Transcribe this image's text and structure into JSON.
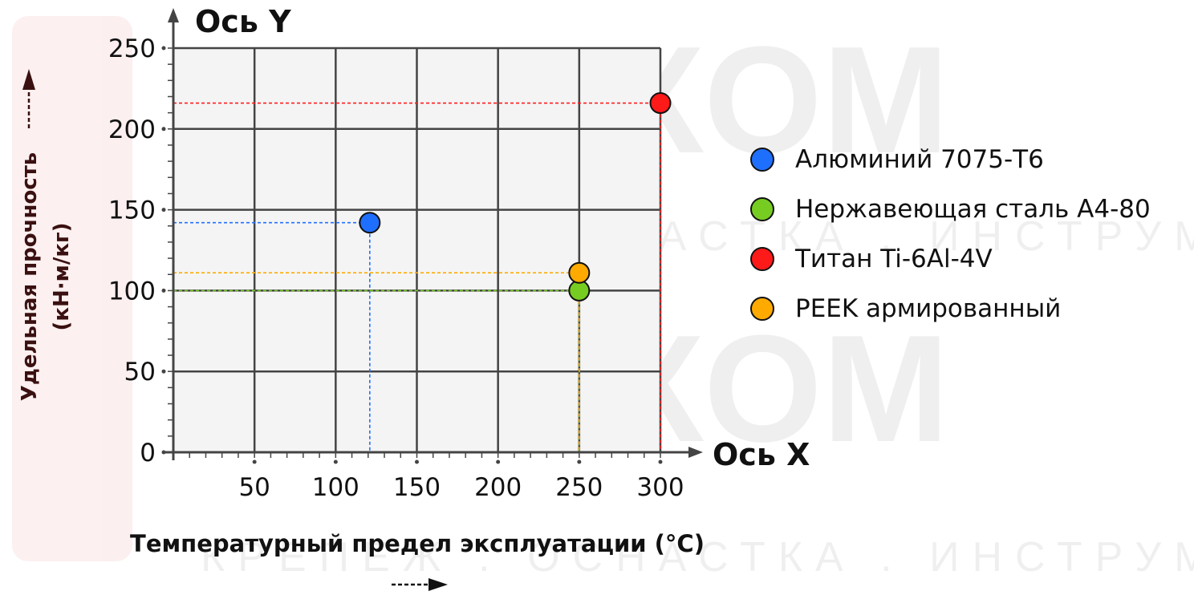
{
  "chart_data": {
    "type": "scatter",
    "x_axis_title": "Ось X",
    "y_axis_title": "Ось Y",
    "xlabel": "Температурный предел эксплуатации (°C)",
    "ylabel_line1": "Удельная прочность",
    "ylabel_line2": "(кН·м/кг)",
    "xlim": [
      0,
      300
    ],
    "ylim": [
      0,
      250
    ],
    "x_ticks": [
      50,
      100,
      150,
      200,
      250,
      300
    ],
    "y_ticks": [
      0,
      50,
      100,
      150,
      200,
      250
    ],
    "x_tick_labels": [
      "50",
      "100",
      "150",
      "200",
      "250",
      "300"
    ],
    "y_tick_labels": [
      "0",
      "50",
      "100",
      "150",
      "200",
      "250"
    ],
    "grid": true,
    "legend_position": "right",
    "series": [
      {
        "name": "Алюминий 7075-T6",
        "x": 121,
        "y": 142,
        "color": "#1f6fff"
      },
      {
        "name": "Нержавеющая сталь А4-80",
        "x": 250,
        "y": 100,
        "color": "#77cc22"
      },
      {
        "name": "Титан Ti-6Al-4V",
        "x": 300,
        "y": 216,
        "color": "#ff1a1a"
      },
      {
        "name": "PEEK армированный",
        "x": 250,
        "y": 111,
        "color": "#ffaa00"
      }
    ]
  },
  "watermark": {
    "brand": "КРЕПКОМ",
    "tagline": "КРЕПЕЖ . ОСНАСТКА . ИНСТРУМЕНТ"
  }
}
